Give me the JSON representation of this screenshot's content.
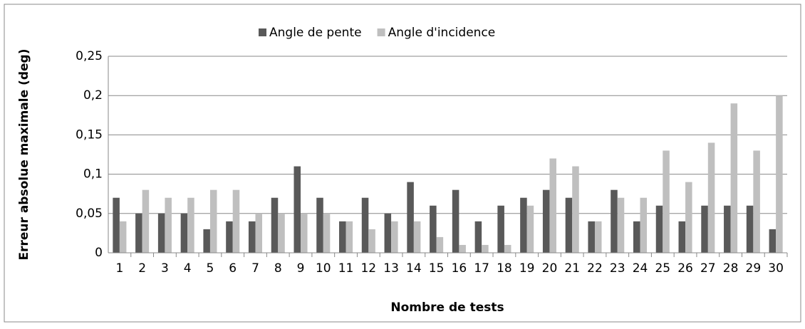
{
  "chart_data": {
    "type": "bar",
    "xlabel": "Nombre de tests",
    "ylabel": "Erreur absolue maximale (deg)",
    "categories": [
      "1",
      "2",
      "3",
      "4",
      "5",
      "6",
      "7",
      "8",
      "9",
      "10",
      "11",
      "12",
      "13",
      "14",
      "15",
      "16",
      "17",
      "18",
      "19",
      "20",
      "21",
      "22",
      "23",
      "24",
      "25",
      "26",
      "27",
      "28",
      "29",
      "30"
    ],
    "series": [
      {
        "name": "Angle de pente",
        "color": "#595959",
        "values": [
          0.07,
          0.05,
          0.05,
          0.05,
          0.03,
          0.04,
          0.04,
          0.07,
          0.11,
          0.07,
          0.04,
          0.07,
          0.05,
          0.09,
          0.06,
          0.08,
          0.04,
          0.06,
          0.07,
          0.08,
          0.07,
          0.04,
          0.08,
          0.04,
          0.06,
          0.04,
          0.06,
          0.06,
          0.06,
          0.03
        ]
      },
      {
        "name": "Angle d'incidence",
        "color": "#bfbfbf",
        "values": [
          0.04,
          0.08,
          0.07,
          0.07,
          0.08,
          0.08,
          0.05,
          0.05,
          0.05,
          0.05,
          0.04,
          0.03,
          0.04,
          0.04,
          0.02,
          0.01,
          0.01,
          0.01,
          0.06,
          0.12,
          0.11,
          0.04,
          0.07,
          0.07,
          0.13,
          0.09,
          0.14,
          0.19,
          0.13,
          0.2
        ]
      }
    ],
    "ylim": [
      0,
      0.25
    ],
    "yticks": [
      0,
      {
        "value": 0.05,
        "label": "0,05"
      },
      {
        "value": 0.1,
        "label": "0,1"
      },
      {
        "value": 0.15,
        "label": "0,15"
      },
      {
        "value": 0.2,
        "label": "0,2"
      },
      {
        "value": 0.25,
        "label": "0,25"
      }
    ],
    "grid": true,
    "legend": "top"
  }
}
